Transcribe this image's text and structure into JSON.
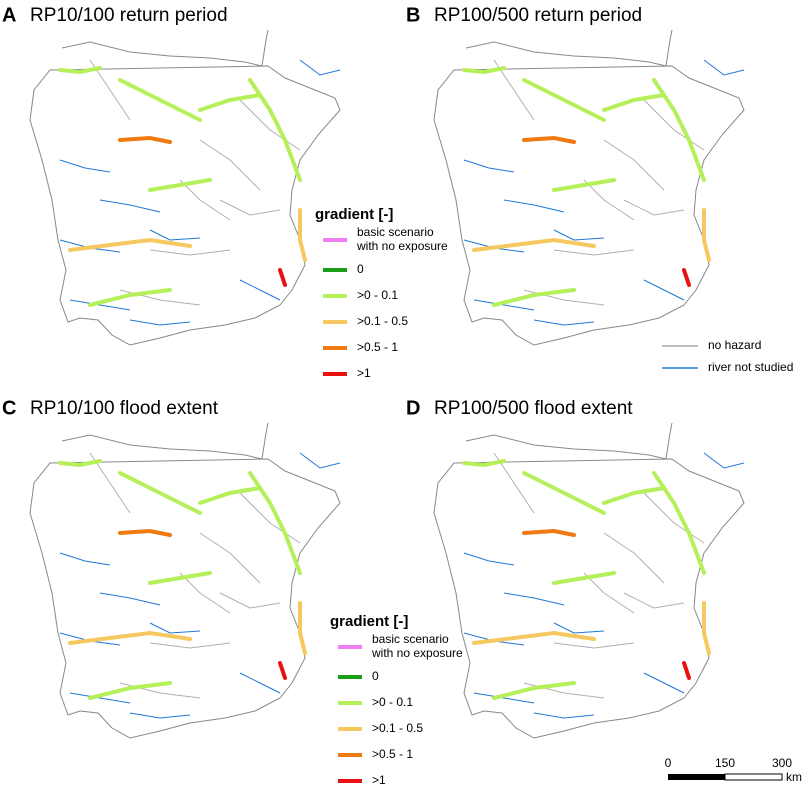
{
  "panels": [
    {
      "letter": "A",
      "title": "RP10/100 return period"
    },
    {
      "letter": "B",
      "title": "RP100/500 return period"
    },
    {
      "letter": "C",
      "title": "RP10/100 flood extent"
    },
    {
      "letter": "D",
      "title": "RP100/500 flood extent"
    }
  ],
  "gradient_legends": [
    {
      "title": "gradient [-]",
      "items": [
        {
          "label": [
            "basic scenario",
            "with no exposure"
          ],
          "color": "#f07ef0"
        },
        {
          "label": [
            "0"
          ],
          "color": "#1a9e1a"
        },
        {
          "label": [
            ">0 - 0.1"
          ],
          "color": "#b5f05a"
        },
        {
          "label": [
            ">0.1 - 0.5"
          ],
          "color": "#f5c860"
        },
        {
          "label": [
            ">0.5 - 1"
          ],
          "color": "#f07a10"
        },
        {
          "label": [
            ">1"
          ],
          "color": "#e81010"
        }
      ]
    },
    {
      "title": "gradient [-]",
      "items": [
        {
          "label": [
            "basic scenario",
            "with no exposure"
          ],
          "color": "#f07ef0"
        },
        {
          "label": [
            "0"
          ],
          "color": "#1a9e1a"
        },
        {
          "label": [
            ">0 - 0.1"
          ],
          "color": "#b5f05a"
        },
        {
          "label": [
            ">0.1 - 0.5"
          ],
          "color": "#f5c860"
        },
        {
          "label": [
            ">0.5 - 1"
          ],
          "color": "#f07a10"
        },
        {
          "label": [
            ">1"
          ],
          "color": "#e81010"
        }
      ]
    }
  ],
  "river_legend": [
    {
      "label": "no hazard",
      "color": "#a8a8a8"
    },
    {
      "label": "river not studied",
      "color": "#1f78d8"
    }
  ],
  "scale_bar": {
    "labels": [
      "0",
      "150",
      "300"
    ],
    "unit": "km"
  }
}
